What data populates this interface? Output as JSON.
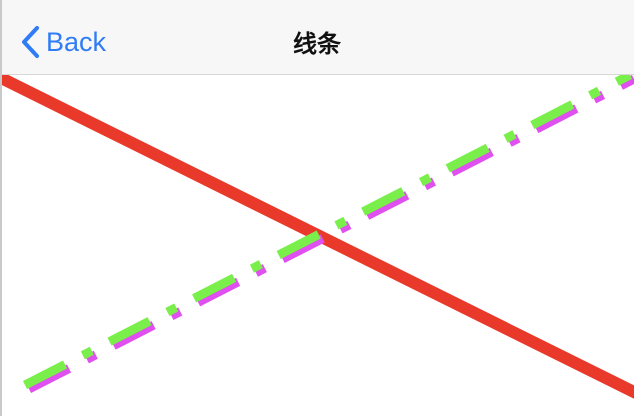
{
  "nav": {
    "back_label": "Back",
    "title": "线条"
  },
  "icons": {
    "back": "chevron-left-icon"
  },
  "colors": {
    "accent": "#2f7cf6",
    "red_line": "#e8392a",
    "dash_line": "#7aee4a",
    "dash_shadow": "#e050f0"
  }
}
